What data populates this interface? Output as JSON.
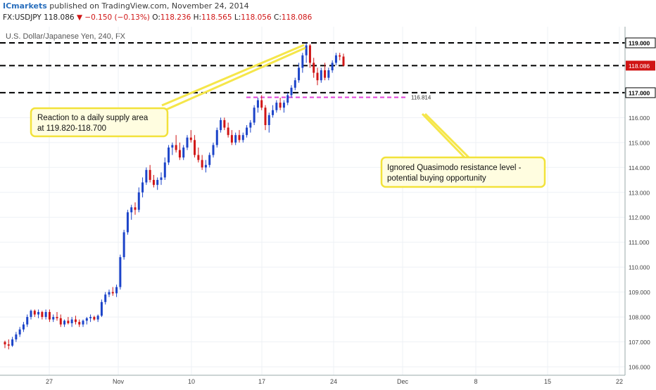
{
  "header": {
    "brand": "ICmarkets",
    "published": "published on TradingView.com, November 24, 2014"
  },
  "quote": {
    "symbol": "FX:USDJPY",
    "last": "118.086",
    "change": "−0.150 (−0.13%)",
    "open_label": "O:",
    "open": "118.236",
    "high_label": "H:",
    "high": "118.565",
    "low_label": "L:",
    "low": "118.056",
    "close_label": "C:",
    "close": "118.086"
  },
  "colors": {
    "up": "#1c44c9",
    "down": "#d01515",
    "level_line": "#000000",
    "quasimodo_line": "#e040d8",
    "annotation_fill": "#fffde0",
    "annotation_border": "#f2e23a"
  },
  "chart_data": {
    "type": "candlestick",
    "title": "U.S. Dollar/Japanese Yen, 240, FX",
    "ylim": [
      106.0,
      119.7
    ],
    "y_ticks": [
      "106.000",
      "107.000",
      "108.000",
      "109.000",
      "110.000",
      "111.000",
      "112.000",
      "113.000",
      "114.000",
      "115.000",
      "116.000",
      "117.000",
      "118.000",
      "119.000"
    ],
    "x_ticks": [
      "27",
      "Nov",
      "10",
      "17",
      "24",
      "Dec",
      "8",
      "15",
      "22"
    ],
    "price_label": "118.086",
    "levels": [
      {
        "price": 119.0,
        "label": "119.000",
        "style": "dashed"
      },
      {
        "price": 118.086,
        "label": "118.086",
        "style": "dashed",
        "current": true
      },
      {
        "price": 117.0,
        "label": "117.000",
        "style": "dashed"
      }
    ],
    "quasimodo_level": {
      "price": 116.814,
      "label": "116.814"
    },
    "annotations": [
      {
        "id": "supply",
        "lines": [
          "Reaction to a daily supply area",
          "at 119.820-118.700"
        ]
      },
      {
        "id": "quasimodo",
        "lines": [
          "Ignored Quasimodo resistance level -",
          "potential buying opportunity"
        ]
      }
    ],
    "candles_ohlc": [
      [
        107.0,
        107.05,
        106.75,
        106.9
      ],
      [
        106.9,
        107.1,
        106.7,
        106.85
      ],
      [
        106.85,
        107.2,
        106.8,
        107.1
      ],
      [
        107.1,
        107.4,
        107.0,
        107.3
      ],
      [
        107.3,
        107.6,
        107.2,
        107.5
      ],
      [
        107.5,
        107.8,
        107.4,
        107.7
      ],
      [
        107.7,
        108.1,
        107.6,
        108.0
      ],
      [
        108.0,
        108.3,
        107.9,
        108.25
      ],
      [
        108.25,
        108.3,
        108.0,
        108.1
      ],
      [
        108.1,
        108.3,
        107.95,
        108.2
      ],
      [
        108.2,
        108.25,
        107.9,
        108.0
      ],
      [
        108.0,
        108.3,
        107.9,
        108.2
      ],
      [
        108.2,
        108.3,
        107.8,
        107.9
      ],
      [
        107.9,
        108.1,
        107.8,
        108.0
      ],
      [
        108.0,
        108.2,
        107.85,
        107.95
      ],
      [
        107.95,
        108.1,
        107.6,
        107.7
      ],
      [
        107.7,
        107.9,
        107.6,
        107.85
      ],
      [
        107.85,
        108.0,
        107.7,
        107.75
      ],
      [
        107.75,
        108.0,
        107.6,
        107.9
      ],
      [
        107.9,
        108.05,
        107.7,
        107.8
      ],
      [
        107.8,
        107.9,
        107.6,
        107.7
      ],
      [
        107.7,
        107.9,
        107.6,
        107.85
      ],
      [
        107.85,
        108.0,
        107.7,
        107.95
      ],
      [
        107.95,
        108.1,
        107.8,
        108.0
      ],
      [
        108.0,
        108.05,
        107.85,
        107.9
      ],
      [
        107.9,
        108.1,
        107.8,
        108.05
      ],
      [
        108.05,
        108.7,
        108.0,
        108.6
      ],
      [
        108.6,
        109.0,
        108.5,
        108.9
      ],
      [
        108.9,
        109.1,
        108.8,
        109.0
      ],
      [
        109.0,
        109.2,
        108.85,
        108.95
      ],
      [
        108.95,
        109.3,
        108.8,
        109.2
      ],
      [
        109.2,
        110.5,
        109.1,
        110.4
      ],
      [
        110.4,
        111.5,
        110.3,
        111.4
      ],
      [
        111.4,
        112.3,
        111.3,
        112.2
      ],
      [
        112.2,
        112.5,
        111.9,
        112.4
      ],
      [
        112.4,
        112.6,
        112.1,
        112.3
      ],
      [
        112.3,
        113.2,
        112.2,
        113.0
      ],
      [
        113.0,
        113.6,
        112.8,
        113.4
      ],
      [
        113.4,
        114.0,
        113.3,
        113.9
      ],
      [
        113.9,
        114.1,
        113.4,
        113.5
      ],
      [
        113.5,
        113.7,
        113.2,
        113.3
      ],
      [
        113.3,
        113.6,
        113.1,
        113.5
      ],
      [
        113.5,
        113.8,
        113.3,
        113.6
      ],
      [
        113.6,
        114.4,
        113.5,
        114.2
      ],
      [
        114.2,
        114.9,
        114.1,
        114.8
      ],
      [
        114.8,
        115.0,
        114.5,
        114.9
      ],
      [
        114.9,
        115.3,
        114.6,
        114.7
      ],
      [
        114.7,
        115.0,
        114.3,
        114.4
      ],
      [
        114.4,
        114.9,
        114.3,
        114.8
      ],
      [
        114.8,
        115.3,
        114.7,
        115.2
      ],
      [
        115.2,
        115.5,
        115.0,
        115.1
      ],
      [
        115.1,
        115.3,
        114.4,
        114.5
      ],
      [
        114.5,
        114.8,
        114.2,
        114.3
      ],
      [
        114.3,
        114.5,
        113.9,
        114.0
      ],
      [
        114.0,
        114.3,
        113.8,
        114.1
      ],
      [
        114.1,
        114.6,
        114.0,
        114.5
      ],
      [
        114.5,
        115.0,
        114.4,
        114.9
      ],
      [
        114.9,
        115.6,
        114.8,
        115.5
      ],
      [
        115.5,
        116.0,
        115.4,
        115.9
      ],
      [
        115.9,
        116.0,
        115.5,
        115.6
      ],
      [
        115.6,
        115.8,
        115.2,
        115.3
      ],
      [
        115.3,
        115.5,
        114.9,
        115.0
      ],
      [
        115.0,
        115.4,
        114.9,
        115.3
      ],
      [
        115.3,
        115.5,
        115.0,
        115.1
      ],
      [
        115.1,
        115.4,
        115.0,
        115.3
      ],
      [
        115.3,
        115.7,
        115.2,
        115.6
      ],
      [
        115.6,
        115.9,
        115.4,
        115.8
      ],
      [
        115.8,
        116.5,
        115.7,
        116.4
      ],
      [
        116.4,
        116.8,
        116.2,
        116.7
      ],
      [
        116.7,
        116.9,
        116.3,
        116.4
      ],
      [
        116.4,
        116.5,
        115.5,
        115.7
      ],
      [
        115.7,
        116.2,
        115.4,
        116.1
      ],
      [
        116.1,
        116.5,
        116.0,
        116.3
      ],
      [
        116.3,
        116.7,
        116.2,
        116.6
      ],
      [
        116.6,
        116.8,
        116.3,
        116.4
      ],
      [
        116.4,
        116.7,
        116.2,
        116.6
      ],
      [
        116.6,
        117.0,
        116.5,
        116.9
      ],
      [
        116.9,
        117.3,
        116.8,
        117.2
      ],
      [
        117.2,
        117.6,
        117.1,
        117.5
      ],
      [
        117.5,
        118.2,
        117.4,
        118.0
      ],
      [
        118.0,
        118.6,
        117.8,
        118.5
      ],
      [
        118.5,
        119.0,
        118.2,
        118.9
      ],
      [
        118.9,
        118.95,
        118.0,
        118.2
      ],
      [
        118.2,
        118.4,
        117.6,
        117.8
      ],
      [
        117.8,
        118.0,
        117.3,
        117.5
      ],
      [
        117.5,
        118.0,
        117.4,
        117.9
      ],
      [
        117.9,
        118.2,
        117.5,
        117.6
      ],
      [
        117.6,
        118.0,
        117.5,
        117.9
      ],
      [
        117.9,
        118.3,
        117.8,
        118.2
      ],
      [
        118.2,
        118.6,
        118.1,
        118.5
      ],
      [
        118.5,
        118.6,
        118.3,
        118.45
      ],
      [
        118.45,
        118.565,
        118.056,
        118.086
      ]
    ]
  }
}
